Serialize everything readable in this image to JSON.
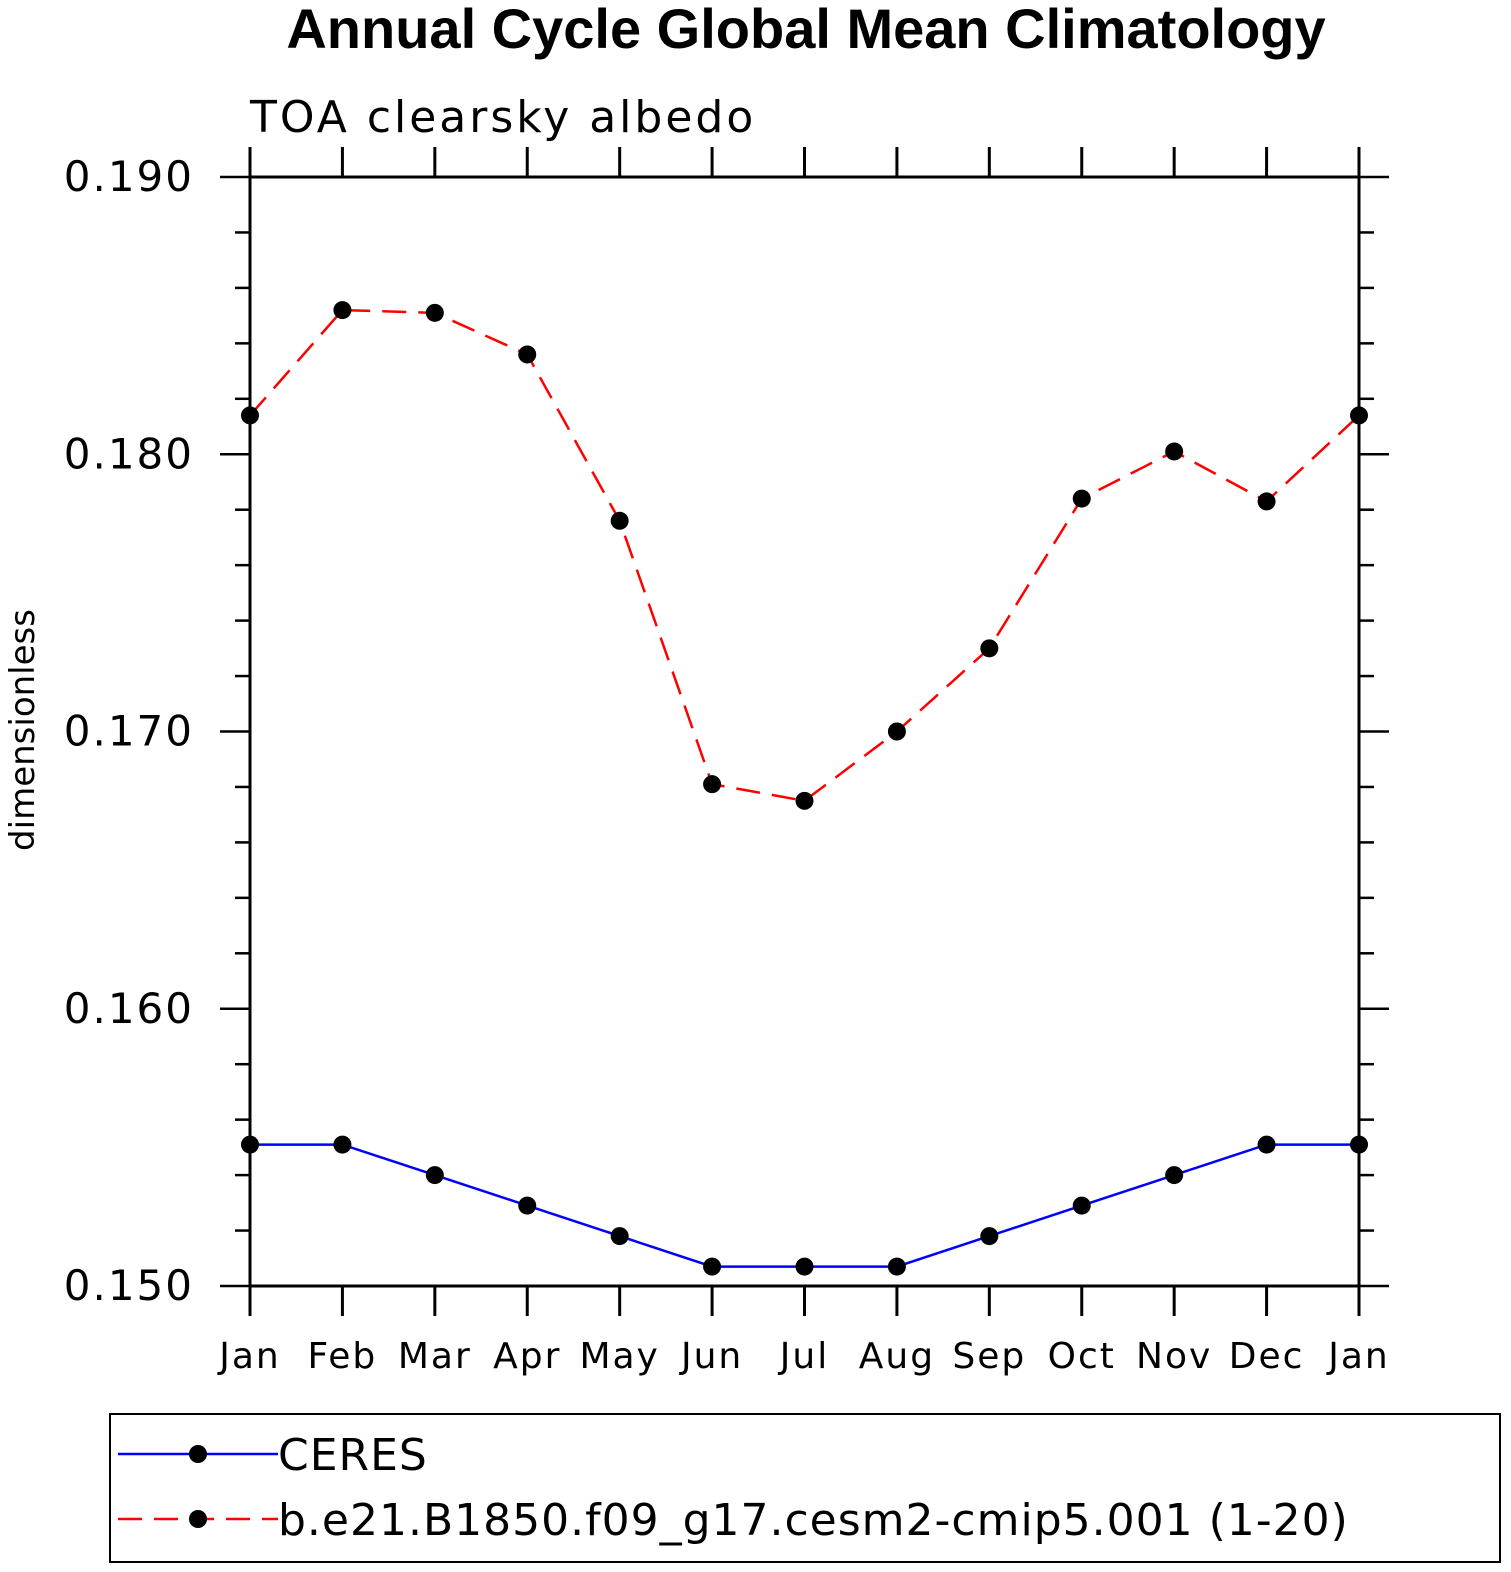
{
  "chart_data": {
    "type": "line",
    "title": "Annual Cycle Global Mean Climatology",
    "subtitle": "TOA clearsky albedo",
    "xlabel": "",
    "ylabel": "dimensionless",
    "categories": [
      "Jan",
      "Feb",
      "Mar",
      "Apr",
      "May",
      "Jun",
      "Jul",
      "Aug",
      "Sep",
      "Oct",
      "Nov",
      "Dec",
      "Jan"
    ],
    "ylim": [
      0.15,
      0.19
    ],
    "yticks": [
      "0.150",
      "0.160",
      "0.170",
      "0.180",
      "0.190"
    ],
    "series": [
      {
        "name": "CERES",
        "color": "#0000ff",
        "line_style": "solid",
        "marker": "filled-circle",
        "values": [
          0.1551,
          0.1551,
          0.154,
          0.1529,
          0.1518,
          0.1507,
          0.1507,
          0.1507,
          0.1518,
          0.1529,
          0.154,
          0.1551,
          0.1551
        ]
      },
      {
        "name": "b.e21.B1850.f09_g17.cesm2-cmip5.001 (1-20)",
        "color": "#ff0000",
        "line_style": "dashed",
        "marker": "filled-circle",
        "values": [
          0.1814,
          0.1852,
          0.1851,
          0.1836,
          0.1776,
          0.1681,
          0.1675,
          0.17,
          0.173,
          0.1784,
          0.1801,
          0.1783,
          0.1814
        ]
      }
    ],
    "legend_position": "bottom",
    "grid": false
  }
}
